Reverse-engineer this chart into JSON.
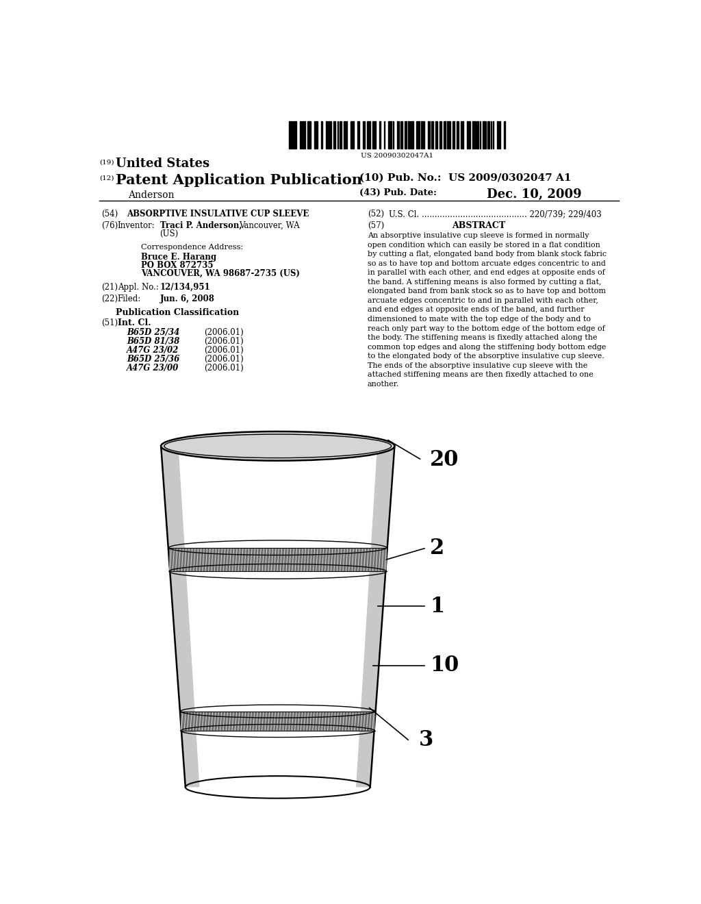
{
  "background_color": "#ffffff",
  "barcode_text": "US 20090302047A1",
  "patent_number": "US 2009/0302047 A1",
  "pub_date": "Dec. 10, 2009",
  "author": "Anderson",
  "field_10_value": "US 2009/0302047 A1",
  "field_43_value": "Dec. 10, 2009",
  "field_54_value": "ABSORPTIVE INSULATIVE CUP SLEEVE",
  "field_52_value": "U.S. Cl. ......................................... 220/739; 229/403",
  "field_76_name": "Inventor:",
  "inventor_bold": "Traci P. Anderson,",
  "inventor_rest": "Vancouver, WA",
  "inventor_us": "(US)",
  "corr_line1": "Correspondence Address:",
  "corr_line2": "Bruce E. Harang",
  "corr_line3": "PO BOX 872735",
  "corr_line4": "VANCOUVER, WA 98687-2735 (US)",
  "field_21_name": "Appl. No.:",
  "field_21_value": "12/134,951",
  "field_22_name": "Filed:",
  "field_22_value": "Jun. 6, 2008",
  "pub_class_header": "Publication Classification",
  "field_51_name": "Int. Cl.",
  "int_cl_entries": [
    [
      "B65D 25/34",
      "(2006.01)"
    ],
    [
      "B65D 81/38",
      "(2006.01)"
    ],
    [
      "A47G 23/02",
      "(2006.01)"
    ],
    [
      "B65D 25/36",
      "(2006.01)"
    ],
    [
      "A47G 23/00",
      "(2006.01)"
    ]
  ],
  "abstract_title": "ABSTRACT",
  "abstract_lines": [
    "An absorptive insulative cup sleeve is formed in normally",
    "open condition which can easily be stored in a flat condition",
    "by cutting a flat, elongated band body from blank stock fabric",
    "so as to have top and bottom arcuate edges concentric to and",
    "in parallel with each other, and end edges at opposite ends of",
    "the band. A stiffening means is also formed by cutting a flat,",
    "elongated band from bank stock so as to have top and bottom",
    "arcuate edges concentric to and in parallel with each other,",
    "and end edges at opposite ends of the band, and further",
    "dimensioned to mate with the top edge of the body and to",
    "reach only part way to the bottom edge of the bottom edge of",
    "the body. The stiffening means is fixedly attached along the",
    "common top edges and along the stiffening body bottom edge",
    "to the elongated body of the absorptive insulative cup sleeve.",
    "The ends of the absorptive insulative cup sleeve with the",
    "attached stiffening means are then fixedly attached to one",
    "another."
  ]
}
